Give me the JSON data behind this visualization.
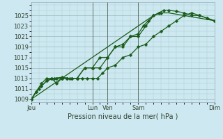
{
  "xlabel": "Pression niveau de la mer( hPa )",
  "background_color": "#cde8f0",
  "grid_color": "#aacccc",
  "grid_color_major": "#99bbbb",
  "line_color": "#1a5c1a",
  "ylim": [
    1008.5,
    1027.5
  ],
  "yticks": [
    1009,
    1011,
    1013,
    1015,
    1017,
    1019,
    1021,
    1023,
    1025
  ],
  "x_labels": [
    "Jeu",
    "Lun",
    "Ven",
    "Sam",
    "Dim"
  ],
  "x_tick_positions": [
    0,
    4,
    5,
    7,
    12
  ],
  "xlim": [
    0,
    12
  ],
  "series": [
    {
      "x": [
        0,
        0.33,
        0.67,
        1.0,
        1.33,
        1.67,
        2.0,
        2.33,
        2.67,
        3.0,
        3.33,
        3.67,
        4.0,
        4.33,
        4.67,
        5.0,
        5.5,
        6.0,
        6.5,
        7.0,
        7.5,
        8.0,
        8.5,
        9.0,
        9.5,
        10.0,
        10.5,
        11.0,
        11.5,
        12.0
      ],
      "y": [
        1009,
        1010.5,
        1011.5,
        1012.5,
        1013,
        1013,
        1013,
        1013,
        1013,
        1013,
        1013,
        1013,
        1013,
        1013,
        1014,
        1015,
        1015.5,
        1017,
        1017.5,
        1019,
        1019.5,
        1021,
        1022,
        1023,
        1024,
        1025,
        1025.5,
        1025,
        1024.5,
        1024
      ],
      "marker": true
    },
    {
      "x": [
        0,
        0.33,
        0.67,
        1.0,
        1.33,
        1.67,
        2.0,
        2.33,
        2.67,
        3.0,
        3.5,
        4.0,
        4.5,
        5.0,
        5.5,
        6.0,
        6.5,
        7.0,
        7.5,
        8.0,
        8.5
      ],
      "y": [
        1009,
        1010.5,
        1012,
        1013,
        1013,
        1012,
        1013,
        1013,
        1013,
        1013,
        1015,
        1015,
        1017,
        1017,
        1019,
        1019,
        1021,
        1021,
        1023,
        1025,
        1025.5
      ],
      "marker": true
    },
    {
      "x": [
        0,
        0.5,
        1.0,
        1.5,
        2.0,
        2.5,
        3.0,
        3.5,
        4.0,
        4.5,
        5.0,
        5.5,
        6.0,
        6.5,
        7.0,
        7.33,
        7.67,
        8.0,
        8.33,
        8.67,
        9.0,
        9.5,
        10.0,
        10.5,
        11.0,
        11.5,
        12.0
      ],
      "y": [
        1009,
        1011,
        1012.5,
        1013,
        1013.2,
        1013,
        1013,
        1015,
        1015,
        1015,
        1017,
        1019,
        1019.5,
        1021,
        1021.5,
        1023,
        1024,
        1025,
        1025.5,
        1026,
        1026,
        1025.8,
        1025.5,
        1025,
        1025,
        1024.5,
        1024
      ],
      "marker": true
    },
    {
      "x": [
        0,
        2.0,
        4.0,
        5.0,
        6.0,
        7.0,
        8.0,
        8.5,
        9.0,
        10.0,
        11.0,
        12.0
      ],
      "y": [
        1009,
        1013,
        1017,
        1019,
        1021,
        1023,
        1025,
        1025.5,
        1025.5,
        1025,
        1024.5,
        1024
      ],
      "marker": false
    }
  ],
  "vlines": [
    4,
    5,
    7
  ],
  "marker_size": 2.5,
  "line_width": 0.9,
  "xlabel_fontsize": 7,
  "tick_fontsize": 6
}
